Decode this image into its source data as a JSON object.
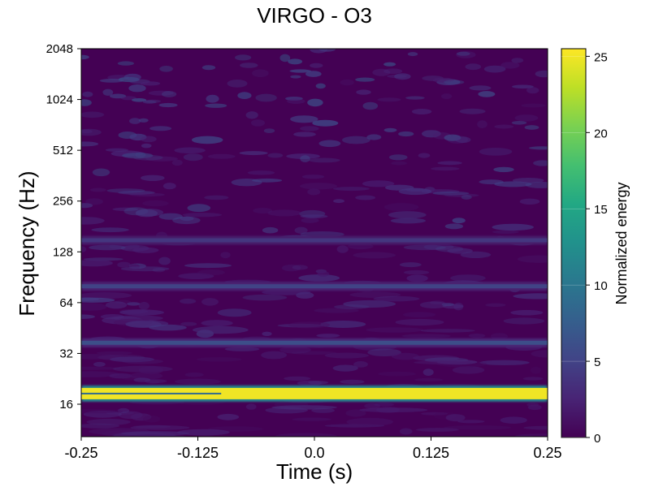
{
  "chart_data": {
    "type": "heatmap",
    "title": "VIRGO - O3",
    "xlabel": "Time (s)",
    "ylabel": "Frequency (Hz)",
    "xlim": [
      -0.25,
      0.25
    ],
    "ylim": [
      10,
      2048
    ],
    "yscale": "log2",
    "x_ticks": [
      -0.25,
      -0.125,
      0.0,
      0.125,
      0.25
    ],
    "x_tick_labels": [
      "-0.25",
      "-0.125",
      "0.0",
      "0.125",
      "0.25"
    ],
    "y_ticks": [
      16,
      32,
      64,
      128,
      256,
      512,
      1024,
      2048
    ],
    "y_tick_labels": [
      "16",
      "32",
      "64",
      "128",
      "256",
      "512",
      "1024",
      "2048"
    ],
    "colorbar": {
      "label": "Normalized energy",
      "range": [
        0,
        25.5
      ],
      "ticks": [
        0,
        5,
        10,
        15,
        20,
        25
      ],
      "tick_labels": [
        "0",
        "5",
        "10",
        "15",
        "20",
        "25"
      ],
      "colormap": "viridis"
    },
    "features": [
      {
        "freq_hz": 18.5,
        "energy": 25,
        "time_range": [
          -0.25,
          0.25
        ],
        "note": "strong horizontal line"
      },
      {
        "freq_hz": 37,
        "energy": 6,
        "time_range": [
          -0.25,
          0.25
        ]
      },
      {
        "freq_hz": 80,
        "energy": 5,
        "time_range": [
          -0.25,
          0.25
        ]
      },
      {
        "freq_hz": 150,
        "energy": 4,
        "time_range": [
          -0.25,
          0.25
        ]
      }
    ]
  }
}
